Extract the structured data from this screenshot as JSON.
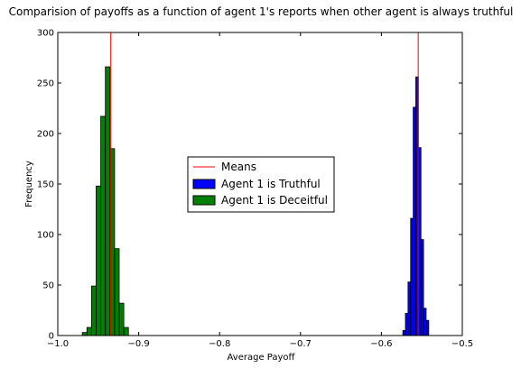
{
  "chart_data": {
    "type": "bar",
    "title": "Comparision of payoffs as a function of agent 1's reports when other agent is always truthful",
    "xlabel": "Average Payoff",
    "ylabel": "Frequency",
    "xlim": [
      -1.0,
      -0.5
    ],
    "ylim": [
      0,
      300
    ],
    "xticks": [
      -1.0,
      -0.9,
      -0.8,
      -0.7,
      -0.6,
      -0.5
    ],
    "xtick_labels": [
      "−1.0",
      "−0.9",
      "−0.8",
      "−0.7",
      "−0.6",
      "−0.5"
    ],
    "yticks": [
      0,
      50,
      100,
      150,
      200,
      250,
      300
    ],
    "ytick_labels": [
      "0",
      "50",
      "100",
      "150",
      "200",
      "250",
      "300"
    ],
    "grid": false,
    "legend_position": "center",
    "series": [
      {
        "name": "Agent 1 is Truthful",
        "color": "#0000ff",
        "bin_edges": [
          -0.5735,
          -0.5703,
          -0.5671,
          -0.5639,
          -0.5607,
          -0.5575,
          -0.5543,
          -0.5511,
          -0.5479,
          -0.5447,
          -0.5415,
          -0.5383
        ],
        "values": [
          5,
          22,
          53,
          116,
          226,
          256,
          186,
          95,
          27,
          15,
          0
        ]
      },
      {
        "name": "Agent 1 is Deceitful",
        "color": "#008000",
        "bin_edges": [
          -0.9697,
          -0.964,
          -0.9583,
          -0.9526,
          -0.9469,
          -0.9412,
          -0.9355,
          -0.9298,
          -0.9241,
          -0.9184,
          -0.9127
        ],
        "values": [
          3,
          8,
          49,
          148,
          217,
          266,
          185,
          86,
          32,
          8
        ]
      }
    ],
    "means": {
      "name": "Means",
      "color": "#ff0000",
      "values": [
        -0.9345,
        -0.5545
      ]
    }
  }
}
